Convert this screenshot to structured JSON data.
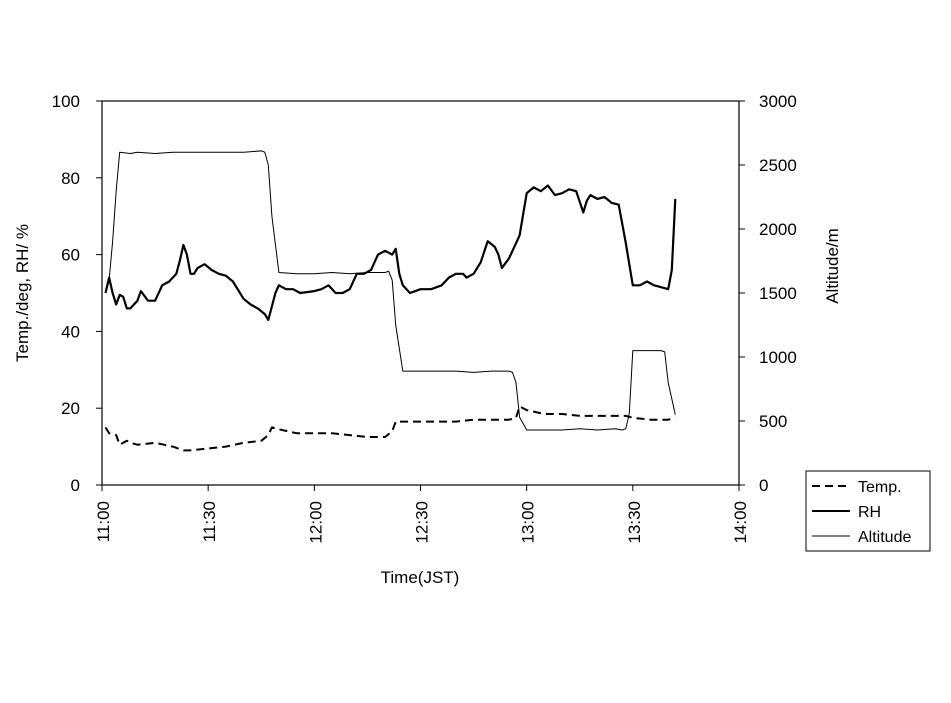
{
  "chart_data": {
    "type": "line",
    "xlabel": "Time(JST)",
    "ylabel": "Temp./deg, RH/ %",
    "y2label": "Altitude/m",
    "x_ticks": [
      "11:00",
      "11:30",
      "12:00",
      "12:30",
      "13:00",
      "13:30",
      "14:00"
    ],
    "xlim": [
      "11:00",
      "14:00"
    ],
    "ylim": [
      0,
      100
    ],
    "y_ticks": [
      0,
      20,
      40,
      60,
      80,
      100
    ],
    "y2lim": [
      0,
      3000
    ],
    "y2_ticks": [
      0,
      500,
      1000,
      1500,
      2000,
      2500,
      3000
    ],
    "grid": false,
    "legend_position": "bottom-right",
    "series": [
      {
        "name": "Temp.",
        "axis": "left",
        "style": "dashed",
        "x": [
          "11:01",
          "11:02",
          "11:04",
          "11:05",
          "11:06",
          "11:07",
          "11:08",
          "11:10",
          "11:15",
          "11:20",
          "11:23",
          "11:25",
          "11:30",
          "11:35",
          "11:40",
          "11:45",
          "11:47",
          "11:48",
          "11:50",
          "11:55",
          "12:00",
          "12:05",
          "12:10",
          "12:15",
          "12:18",
          "12:20",
          "12:22",
          "12:23",
          "12:25",
          "12:30",
          "12:35",
          "12:40",
          "12:45",
          "12:50",
          "12:55",
          "12:57",
          "12:58",
          "13:00",
          "13:05",
          "13:10",
          "13:15",
          "13:20",
          "13:25",
          "13:28",
          "13:30",
          "13:35",
          "13:40",
          "13:42"
        ],
        "values": [
          15,
          13.5,
          13,
          10.5,
          11,
          11.5,
          11,
          10.5,
          11,
          10,
          9,
          9,
          9.5,
          10,
          11,
          11.5,
          13,
          15,
          14.5,
          13.5,
          13.5,
          13.5,
          13,
          12.5,
          12.5,
          12.5,
          14,
          16.5,
          16.5,
          16.5,
          16.5,
          16.5,
          17,
          17,
          17,
          17.5,
          20.5,
          19.5,
          18.5,
          18.5,
          18,
          18,
          18,
          18,
          17.5,
          17,
          17,
          17.5
        ]
      },
      {
        "name": "RH",
        "axis": "left",
        "style": "solid",
        "x": [
          "11:01",
          "11:02",
          "11:03",
          "11:04",
          "11:05",
          "11:06",
          "11:07",
          "11:08",
          "11:10",
          "11:11",
          "11:13",
          "11:15",
          "11:17",
          "11:19",
          "11:21",
          "11:22",
          "11:23",
          "11:24",
          "11:25",
          "11:26",
          "11:27",
          "11:29",
          "11:31",
          "11:33",
          "11:35",
          "11:37",
          "11:40",
          "11:42",
          "11:44",
          "11:46",
          "11:47",
          "11:48",
          "11:49",
          "11:50",
          "11:52",
          "11:54",
          "11:56",
          "12:00",
          "12:02",
          "12:04",
          "12:06",
          "12:08",
          "12:10",
          "12:12",
          "12:14",
          "12:16",
          "12:18",
          "12:20",
          "12:22",
          "12:23",
          "12:24",
          "12:25",
          "12:27",
          "12:30",
          "12:33",
          "12:36",
          "12:38",
          "12:40",
          "12:42",
          "12:43",
          "12:45",
          "12:47",
          "12:49",
          "12:51",
          "12:52",
          "12:53",
          "12:55",
          "12:56",
          "12:58",
          "13:00",
          "13:02",
          "13:04",
          "13:06",
          "13:08",
          "13:10",
          "13:12",
          "13:14",
          "13:16",
          "13:17",
          "13:18",
          "13:20",
          "13:22",
          "13:24",
          "13:26",
          "13:28",
          "13:30",
          "13:32",
          "13:34",
          "13:36",
          "13:38",
          "13:40",
          "13:41",
          "13:42"
        ],
        "values": [
          50,
          54,
          50,
          47,
          49.5,
          49,
          46,
          46,
          48,
          50.5,
          48,
          48,
          52,
          53,
          55,
          58.5,
          62.5,
          60,
          55,
          55,
          56.5,
          57.5,
          56,
          55,
          54.5,
          53,
          48.5,
          47,
          46,
          44.5,
          43,
          46.5,
          50,
          52,
          51,
          51,
          50,
          50.5,
          51,
          52,
          50,
          50,
          51,
          55,
          55,
          56,
          60,
          61,
          60,
          61.5,
          55,
          52,
          50,
          51,
          51,
          52,
          54,
          55,
          55,
          54,
          55,
          58,
          63.5,
          62,
          60,
          56.5,
          59,
          61,
          65,
          76,
          77.5,
          76.5,
          78,
          75.5,
          76,
          77,
          76.5,
          71,
          74,
          75.5,
          74.5,
          75,
          73.5,
          73,
          63,
          52,
          52,
          53,
          52,
          51.5,
          51,
          56,
          74.5
        ]
      },
      {
        "name": "Altitude",
        "axis": "right",
        "style": "thin",
        "x": [
          "11:01",
          "11:02",
          "11:03",
          "11:04",
          "11:05",
          "11:08",
          "11:10",
          "11:15",
          "11:20",
          "11:25",
          "11:30",
          "11:35",
          "11:40",
          "11:45",
          "11:46",
          "11:47",
          "11:48",
          "11:50",
          "11:55",
          "12:00",
          "12:05",
          "12:10",
          "12:15",
          "12:20",
          "12:21",
          "12:22",
          "12:23",
          "12:25",
          "12:30",
          "12:35",
          "12:40",
          "12:45",
          "12:50",
          "12:55",
          "12:56",
          "12:57",
          "12:58",
          "13:00",
          "13:05",
          "13:10",
          "13:15",
          "13:20",
          "13:25",
          "13:27",
          "13:28",
          "13:29",
          "13:30",
          "13:35",
          "13:38",
          "13:39",
          "13:40",
          "13:42"
        ],
        "values": [
          1500,
          1600,
          1900,
          2300,
          2600,
          2590,
          2600,
          2590,
          2600,
          2600,
          2600,
          2600,
          2600,
          2610,
          2600,
          2500,
          2100,
          1660,
          1650,
          1650,
          1660,
          1650,
          1660,
          1660,
          1670,
          1600,
          1250,
          890,
          890,
          890,
          890,
          880,
          890,
          890,
          880,
          800,
          530,
          430,
          430,
          430,
          440,
          430,
          440,
          430,
          440,
          560,
          1050,
          1050,
          1050,
          1040,
          800,
          550
        ]
      }
    ]
  }
}
